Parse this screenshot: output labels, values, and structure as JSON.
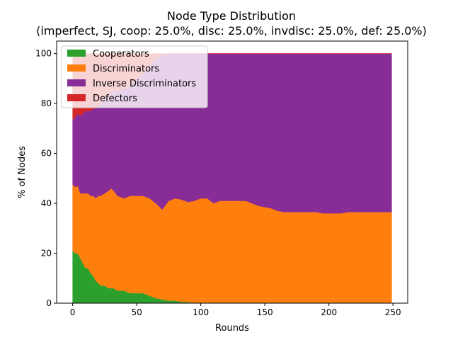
{
  "chart_data": {
    "type": "area",
    "stacked": true,
    "title": "Node Type Distribution",
    "subtitle": "(imperfect, SJ, coop: 25.0%, disc: 25.0%, invdisc: 25.0%, def: 25.0%)",
    "xlabel": "Rounds",
    "ylabel": "% of Nodes",
    "xlim": [
      -12.5,
      261.5
    ],
    "ylim": [
      0,
      105
    ],
    "x_ticks": [
      0,
      50,
      100,
      150,
      200,
      250
    ],
    "y_ticks": [
      0,
      20,
      40,
      60,
      80,
      100
    ],
    "grid": false,
    "legend_position": "top-left",
    "x": [
      0,
      2,
      4,
      6,
      8,
      10,
      12,
      14,
      16,
      18,
      20,
      22,
      25,
      28,
      30,
      32,
      35,
      40,
      45,
      50,
      55,
      60,
      65,
      70,
      75,
      80,
      85,
      90,
      95,
      100,
      105,
      110,
      115,
      120,
      125,
      130,
      135,
      140,
      145,
      150,
      155,
      160,
      165,
      170,
      175,
      180,
      185,
      190,
      195,
      200,
      205,
      210,
      215,
      220,
      225,
      230,
      235,
      240,
      245,
      249
    ],
    "series": [
      {
        "name": "Cooperators",
        "color": "#2ca02c",
        "values": [
          21,
          20,
          20,
          18,
          16,
          14,
          14,
          12,
          11,
          9,
          8,
          7,
          7,
          6,
          6,
          6,
          5,
          5,
          4,
          4,
          4,
          3,
          2,
          1.5,
          1,
          1,
          0.5,
          0.5,
          0,
          0,
          0,
          0,
          0,
          0,
          0,
          0,
          0,
          0,
          0,
          0,
          0,
          0,
          0,
          0,
          0,
          0,
          0,
          0,
          0,
          0,
          0,
          0,
          0,
          0,
          0,
          0,
          0,
          0,
          0,
          0
        ]
      },
      {
        "name": "Discriminators",
        "color": "#ff7f0e",
        "values": [
          26.5,
          26.5,
          27,
          26,
          28,
          30,
          30,
          31,
          32,
          33,
          35,
          36,
          37,
          39,
          40,
          39,
          38,
          37,
          39,
          39,
          39,
          39,
          38,
          36,
          40,
          41,
          41,
          40,
          41,
          42,
          42,
          40,
          41,
          41,
          41,
          41,
          41,
          40,
          39,
          38.5,
          38,
          37,
          36.5,
          36.5,
          36.5,
          36.5,
          36.5,
          36.5,
          36,
          36,
          36,
          36,
          36.5,
          36.5,
          36.5,
          36.5,
          36.5,
          36.5,
          36.5,
          36.5
        ]
      },
      {
        "name": "Inverse Discriminators",
        "color": "#882c97",
        "values": [
          26,
          28,
          29,
          31,
          32,
          33,
          33,
          34,
          35,
          36,
          36,
          37,
          38,
          38,
          38,
          40,
          42,
          44,
          44,
          47,
          49,
          53,
          58,
          62,
          59,
          58,
          58.5,
          59.5,
          59,
          58,
          58,
          60,
          59,
          59,
          59,
          59,
          59,
          60,
          61,
          61.5,
          62,
          63,
          63.5,
          63.5,
          63.5,
          63.5,
          63.5,
          63.5,
          64,
          64,
          64,
          64,
          63.5,
          63.5,
          63.5,
          63.5,
          63.5,
          63.5,
          63.5,
          63.5
        ]
      },
      {
        "name": "Defectors",
        "color": "#d62728",
        "values": [
          26.5,
          25.5,
          24,
          25,
          24,
          23,
          23,
          23,
          22,
          22,
          21,
          20,
          18,
          17,
          16,
          15,
          15,
          14,
          13,
          10,
          8,
          5,
          2,
          0.5,
          0,
          0,
          0,
          0,
          0,
          0,
          0,
          0,
          0,
          0,
          0,
          0,
          0,
          0,
          0,
          0,
          0,
          0,
          0,
          0,
          0,
          0,
          0,
          0,
          0,
          0,
          0,
          0,
          0,
          0,
          0,
          0,
          0,
          0,
          0,
          0
        ]
      }
    ]
  }
}
